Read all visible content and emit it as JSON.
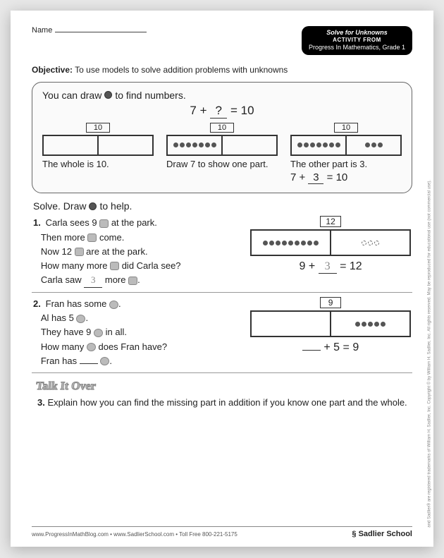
{
  "header": {
    "name_label": "Name",
    "badge_title": "Solve for Unknowns",
    "badge_sub1": "ACTIVITY FROM",
    "badge_sub2": "Progress In Mathematics, Grade 1"
  },
  "objective": {
    "label": "Objective:",
    "text": " To use models to solve addition problems with unknowns"
  },
  "example": {
    "intro_a": "You can draw ",
    "intro_b": " to find numbers.",
    "eq_left": "7",
    "eq_mid": "?",
    "eq_right": "10",
    "cols": [
      {
        "label": "10",
        "text": "The whole is 10.",
        "eq": ""
      },
      {
        "label": "10",
        "text": "Draw 7 to show one part.",
        "eq": ""
      },
      {
        "label": "10",
        "text": "The other part is 3.",
        "eq_a": "7",
        "eq_b": "3",
        "eq_c": "10"
      }
    ]
  },
  "instruction_a": "Solve. Draw ",
  "instruction_b": " to help.",
  "p1": {
    "num": "1.",
    "l1a": "Carla sees 9 ",
    "l1b": " at the park.",
    "l2a": "Then more ",
    "l2b": " come.",
    "l3a": "Now 12 ",
    "l3b": " are at the park.",
    "l4a": "How many more ",
    "l4b": " did Carla see?",
    "ans_a": "Carla saw ",
    "ans_val": "3",
    "ans_b": " more ",
    "work_label": "12",
    "eq_a": "9",
    "eq_b": "3",
    "eq_c": "12"
  },
  "p2": {
    "num": "2.",
    "l1a": "Fran has some ",
    "l1b": ".",
    "l2a": "Al has 5 ",
    "l2b": ".",
    "l3a": "They have 9 ",
    "l3b": " in all.",
    "l4a": "How many ",
    "l4b": " does Fran have?",
    "ans_a": "Fran has ",
    "ans_b": " ",
    "work_label": "9",
    "eq_b": "5",
    "eq_c": "9"
  },
  "talk": "Talk It Over",
  "p3": {
    "num": "3.",
    "text": "Explain how you can find the missing part in addition if you know one part and the whole."
  },
  "footer": {
    "left": "www.ProgressInMathBlog.com  •  www.SadlierSchool.com  •  Toll Free 800-221-5175",
    "right": "Sadlier School"
  },
  "sidenote": "and Sadlier® are registered trademarks of William H. Sadlier, Inc. Copyright © by William H. Sadlier, Inc. All rights reserved. May be reproduced for educational use (not commercial use)."
}
